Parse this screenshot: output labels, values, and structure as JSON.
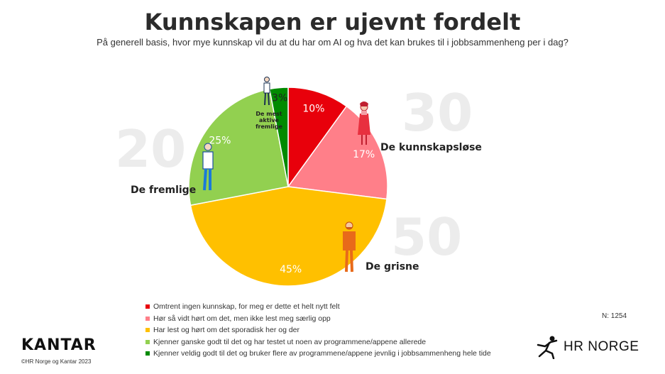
{
  "title": "Kunnskapen er ujevnt fordelt",
  "subtitle": "På generell basis, hvor mye kunnskap vil du at du har om AI og hva det kan brukes til i jobbsammenheng per i dag?",
  "background_numbers": [
    "20",
    "30",
    "50"
  ],
  "chart_data": {
    "type": "pie",
    "start_angle_deg": 0,
    "direction": "clockwise",
    "slices": [
      {
        "label": "Omtrent ingen kunnskap, for meg er dette et helt nytt felt",
        "value": 10,
        "value_label": "10%",
        "color": "#e8000b"
      },
      {
        "label": "Hør så vidt hørt om det, men ikke lest meg særlig opp",
        "value": 17,
        "value_label": "17%",
        "color": "#ff7f89"
      },
      {
        "label": "Har lest og hørt om det sporadisk her og der",
        "value": 45,
        "value_label": "45%",
        "color": "#ffc000"
      },
      {
        "label": "Kjenner ganske godt til det og har testet ut noen av programmene/appene allerede",
        "value": 25,
        "value_label": "25%",
        "color": "#92d050"
      },
      {
        "label": "Kjenner veldig godt til det og bruker flere av programmene/appene jevnlig i jobbsammenheng hele tide",
        "value": 3,
        "value_label": "3%",
        "color": "#008a00"
      }
    ]
  },
  "segment_names": {
    "kunnskapslose": "De kunnskapsløse",
    "grisne": "De grisne",
    "fremlige": "De fremlige",
    "mest_aktive": "De mest aktive fremlige"
  },
  "n_label": "N:  1254",
  "logos": {
    "kantar": "KANTAR",
    "hr_norge": "HR NORGE"
  },
  "copyright": "©HR Norge og Kantar 2023"
}
